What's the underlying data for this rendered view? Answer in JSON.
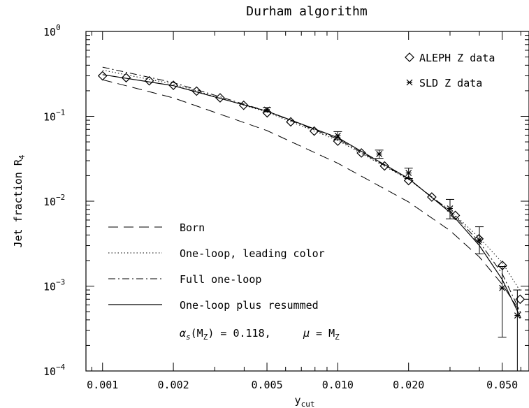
{
  "chart_data": {
    "type": "scatter",
    "title": "Durham algorithm",
    "xlabel": "y",
    "xlabel_sub": "cut",
    "ylabel": "Jet fraction R",
    "ylabel_sub": "4",
    "x_scale": "log",
    "y_scale": "log",
    "xlim": [
      0.00085,
      0.065
    ],
    "ylim": [
      0.0001,
      1
    ],
    "x_ticks": [
      {
        "value": 0.001,
        "label": "0.001"
      },
      {
        "value": 0.002,
        "label": "0.002"
      },
      {
        "value": 0.005,
        "label": "0.005"
      },
      {
        "value": 0.01,
        "label": "0.010"
      },
      {
        "value": 0.02,
        "label": "0.020"
      },
      {
        "value": 0.05,
        "label": "0.050"
      }
    ],
    "y_ticks": [
      {
        "value": 1,
        "base": "10",
        "exp": "0"
      },
      {
        "value": 0.1,
        "base": "10",
        "exp": "−1"
      },
      {
        "value": 0.01,
        "base": "10",
        "exp": "−2"
      },
      {
        "value": 0.001,
        "base": "10",
        "exp": "−3"
      },
      {
        "value": 0.0001,
        "base": "10",
        "exp": "−4"
      }
    ],
    "grid": false,
    "legend_placement": "top-right and bottom-left",
    "series": [
      {
        "name": "ALEPH Z data",
        "kind": "points",
        "marker": "diamond",
        "points": [
          {
            "x": 0.001,
            "y": 0.3
          },
          {
            "x": 0.00126,
            "y": 0.285
          },
          {
            "x": 0.00158,
            "y": 0.262
          },
          {
            "x": 0.002,
            "y": 0.232
          },
          {
            "x": 0.00251,
            "y": 0.198
          },
          {
            "x": 0.00316,
            "y": 0.165
          },
          {
            "x": 0.00398,
            "y": 0.135
          },
          {
            "x": 0.00501,
            "y": 0.11
          },
          {
            "x": 0.00631,
            "y": 0.086
          },
          {
            "x": 0.00794,
            "y": 0.067
          },
          {
            "x": 0.01,
            "y": 0.051
          },
          {
            "x": 0.0126,
            "y": 0.037
          },
          {
            "x": 0.0158,
            "y": 0.026
          },
          {
            "x": 0.02,
            "y": 0.0175
          },
          {
            "x": 0.0251,
            "y": 0.0112
          },
          {
            "x": 0.0316,
            "y": 0.0068
          },
          {
            "x": 0.0398,
            "y": 0.0036
          },
          {
            "x": 0.0501,
            "y": 0.00175
          },
          {
            "x": 0.0596,
            "y": 0.0007
          }
        ]
      },
      {
        "name": "SLD Z data",
        "kind": "points",
        "marker": "star",
        "points": [
          {
            "x": 0.005,
            "y": 0.12,
            "lo": 0.113,
            "hi": 0.127
          },
          {
            "x": 0.01,
            "y": 0.059,
            "lo": 0.053,
            "hi": 0.066
          },
          {
            "x": 0.015,
            "y": 0.036,
            "lo": 0.032,
            "hi": 0.04
          },
          {
            "x": 0.02,
            "y": 0.0215,
            "lo": 0.0185,
            "hi": 0.0245
          },
          {
            "x": 0.03,
            "y": 0.0082,
            "lo": 0.0062,
            "hi": 0.0105
          },
          {
            "x": 0.04,
            "y": 0.0035,
            "lo": 0.0024,
            "hi": 0.005
          },
          {
            "x": 0.05,
            "y": 0.00095,
            "lo": 0.00025,
            "hi": 0.0017
          },
          {
            "x": 0.058,
            "y": 0.00045,
            "lo": 0.0001,
            "hi": 0.0009
          }
        ]
      },
      {
        "name": "Born",
        "kind": "line",
        "dash": "dashed",
        "points": [
          {
            "x": 0.001,
            "y": 0.27
          },
          {
            "x": 0.002,
            "y": 0.165
          },
          {
            "x": 0.005,
            "y": 0.068
          },
          {
            "x": 0.01,
            "y": 0.028
          },
          {
            "x": 0.02,
            "y": 0.0098
          },
          {
            "x": 0.03,
            "y": 0.0045
          },
          {
            "x": 0.04,
            "y": 0.0022
          },
          {
            "x": 0.05,
            "y": 0.00105
          },
          {
            "x": 0.06,
            "y": 0.00048
          }
        ]
      },
      {
        "name": "One-loop, leading color",
        "kind": "line",
        "dash": "dotted",
        "points": [
          {
            "x": 0.001,
            "y": 0.35
          },
          {
            "x": 0.002,
            "y": 0.24
          },
          {
            "x": 0.005,
            "y": 0.112
          },
          {
            "x": 0.01,
            "y": 0.052
          },
          {
            "x": 0.02,
            "y": 0.018
          },
          {
            "x": 0.03,
            "y": 0.0078
          },
          {
            "x": 0.04,
            "y": 0.0037
          },
          {
            "x": 0.05,
            "y": 0.0019
          },
          {
            "x": 0.06,
            "y": 0.00085
          }
        ]
      },
      {
        "name": "Full one-loop",
        "kind": "line",
        "dash": "dash-dot",
        "points": [
          {
            "x": 0.001,
            "y": 0.38
          },
          {
            "x": 0.002,
            "y": 0.25
          },
          {
            "x": 0.005,
            "y": 0.115
          },
          {
            "x": 0.01,
            "y": 0.054
          },
          {
            "x": 0.02,
            "y": 0.0182
          },
          {
            "x": 0.03,
            "y": 0.0077
          },
          {
            "x": 0.04,
            "y": 0.0033
          },
          {
            "x": 0.05,
            "y": 0.0014
          },
          {
            "x": 0.06,
            "y": 0.00048
          }
        ]
      },
      {
        "name": "One-loop plus resummed",
        "kind": "line",
        "dash": "solid",
        "points": [
          {
            "x": 0.001,
            "y": 0.31
          },
          {
            "x": 0.002,
            "y": 0.23
          },
          {
            "x": 0.005,
            "y": 0.115
          },
          {
            "x": 0.01,
            "y": 0.056
          },
          {
            "x": 0.02,
            "y": 0.0185
          },
          {
            "x": 0.03,
            "y": 0.0074
          },
          {
            "x": 0.04,
            "y": 0.003
          },
          {
            "x": 0.05,
            "y": 0.0012
          },
          {
            "x": 0.06,
            "y": 0.00042
          }
        ]
      }
    ],
    "annotation": {
      "alpha_symbol": "α",
      "alpha_sub": "s",
      "alpha_arg": "(M",
      "alpha_arg_sub": "Z",
      "alpha_value": ") = 0.118,",
      "mu_symbol": "μ",
      "mu_eq": "= M",
      "mu_sub": "Z"
    }
  }
}
